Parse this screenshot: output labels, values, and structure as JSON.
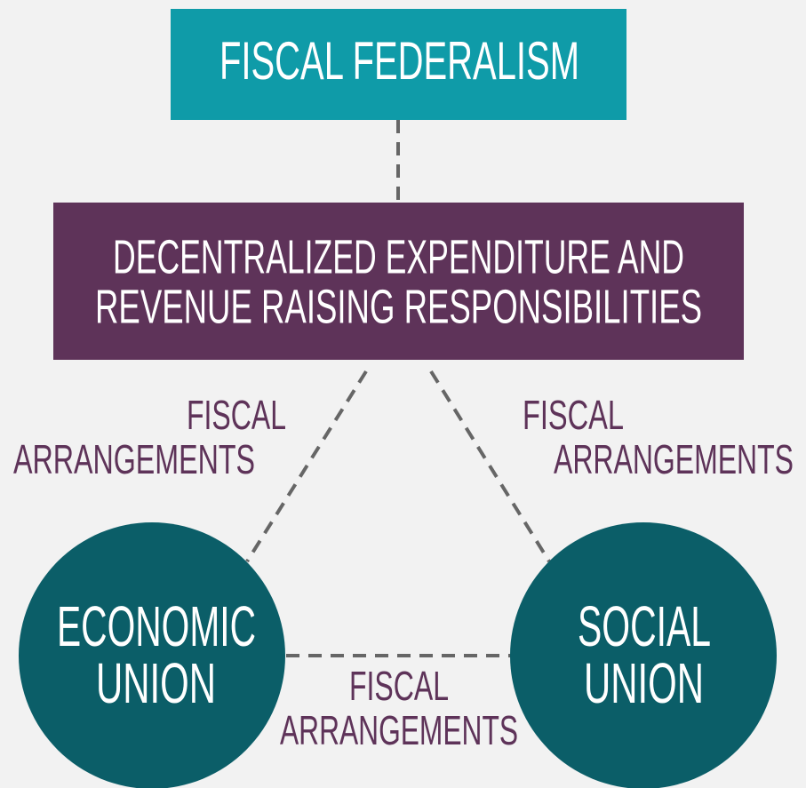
{
  "nodes": [
    {
      "label": [
        "FISCAL FEDERALISM"
      ]
    },
    {
      "label": [
        "DECENTRALIZED EXPENDITURE AND",
        "REVENUE RAISING RESPONSIBILITIES"
      ]
    },
    {
      "label": [
        "ECONOMIC",
        "UNION"
      ]
    },
    {
      "label": [
        "SOCIAL",
        "UNION"
      ]
    }
  ],
  "edges": [
    {
      "label": [
        "FISCAL",
        "ARRANGEMENTS"
      ]
    },
    {
      "label": [
        "FISCAL",
        "ARRANGEMENTS"
      ]
    },
    {
      "label": [
        "FISCAL",
        "ARRANGEMENTS"
      ]
    }
  ]
}
